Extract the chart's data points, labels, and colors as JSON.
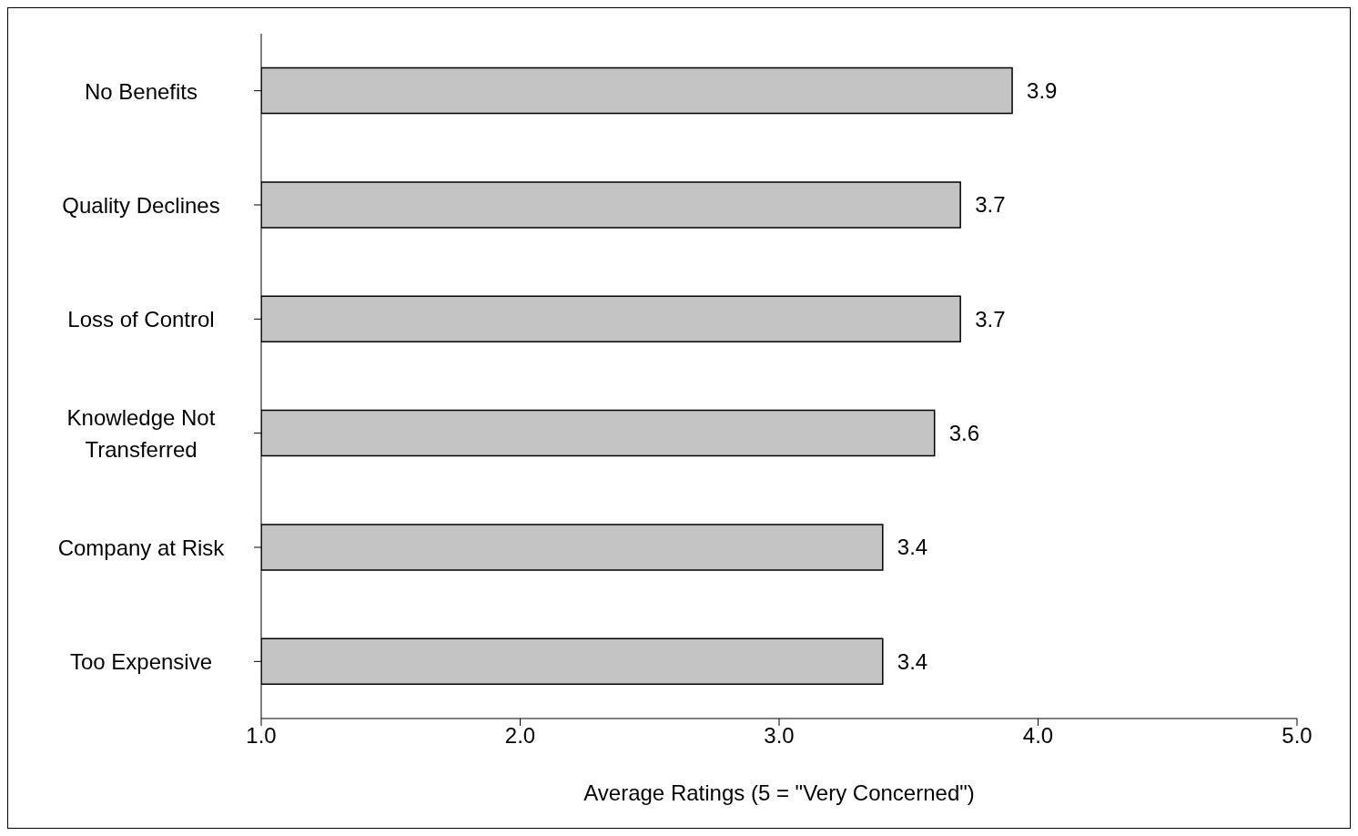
{
  "chart_data": {
    "type": "bar",
    "orientation": "horizontal",
    "xlabel": "Average Ratings (5 = \"Very Concerned\")",
    "categories": [
      "No Benefits",
      "Quality Declines",
      "Loss of Control",
      "Knowledge Not Transferred",
      "Company at Risk",
      "Too Expensive"
    ],
    "values": [
      3.9,
      3.7,
      3.7,
      3.6,
      3.4,
      3.4
    ],
    "color": "#c4c4c4",
    "xlim": [
      1,
      5
    ],
    "xticks": [
      {
        "value": 1,
        "label": "1.0"
      },
      {
        "value": 2,
        "label": "2.0"
      },
      {
        "value": 3,
        "label": "3.0"
      },
      {
        "value": 4,
        "label": "4.0"
      },
      {
        "value": 5,
        "label": "5.0"
      }
    ],
    "data_labels": true,
    "grid": false,
    "legend": false
  }
}
